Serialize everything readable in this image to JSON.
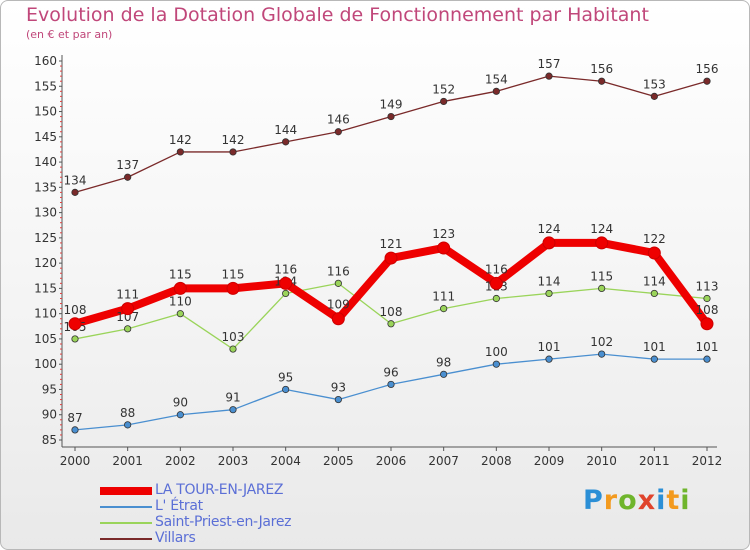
{
  "header": {
    "title": "Evolution de la Dotation Globale de Fonctionnement par Habitant",
    "subtitle": "(en € et par an)"
  },
  "logo": {
    "text": "Proxiti"
  },
  "chart_data": {
    "type": "line",
    "title": "Evolution de la Dotation Globale de Fonctionnement par Habitant",
    "subtitle": "(en € et par an)",
    "xlabel": "",
    "ylabel": "",
    "ylim": [
      85,
      160
    ],
    "yticks": [
      85,
      90,
      95,
      100,
      105,
      110,
      115,
      120,
      125,
      130,
      135,
      140,
      145,
      150,
      155,
      160
    ],
    "grid": false,
    "legend_position": "bottom-left",
    "categories": [
      "2000",
      "2001",
      "2002",
      "2003",
      "2004",
      "2005",
      "2006",
      "2007",
      "2008",
      "2009",
      "2010",
      "2011",
      "2012"
    ],
    "series": [
      {
        "name": "Villars",
        "color": "#7a2a2a",
        "values": [
          134,
          137,
          142,
          142,
          144,
          146,
          149,
          152,
          154,
          157,
          156,
          153,
          156
        ]
      },
      {
        "name": "Saint-Priest-en-Jarez",
        "color": "#9ad45a",
        "values": [
          105,
          107,
          110,
          103,
          114,
          116,
          108,
          111,
          113,
          114,
          115,
          114,
          113
        ]
      },
      {
        "name": "L' Étrat",
        "color": "#4a8fd0",
        "values": [
          87,
          88,
          90,
          91,
          95,
          93,
          96,
          98,
          100,
          101,
          102,
          101,
          101
        ]
      },
      {
        "name": "LA TOUR-EN-JAREZ",
        "color": "#ee0000",
        "values": [
          108,
          111,
          115,
          115,
          116,
          109,
          121,
          123,
          116,
          124,
          124,
          122,
          108
        ]
      }
    ],
    "legend_order": [
      "LA TOUR-EN-JAREZ",
      "L' Étrat",
      "Saint-Priest-en-Jarez",
      "Villars"
    ]
  }
}
